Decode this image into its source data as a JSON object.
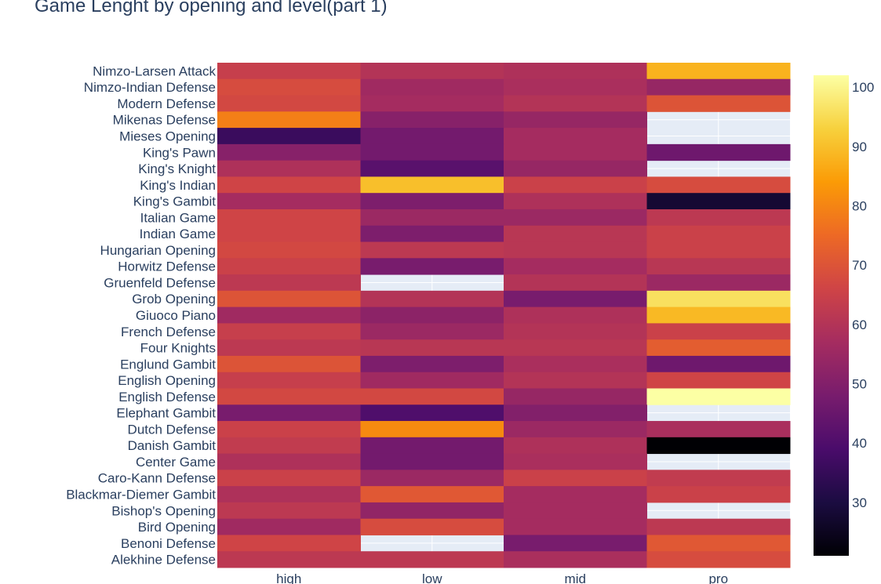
{
  "chart_data": {
    "type": "heatmap",
    "title": "Game Lenght by opening and level(part 1)",
    "xlabel": "",
    "ylabel": "",
    "x": [
      "high",
      "low",
      "mid",
      "pro"
    ],
    "y": [
      "Nimzo-Larsen Attack",
      "Nimzo-Indian Defense",
      "Modern Defense",
      "Mikenas Defense",
      "Mieses Opening",
      "King's Pawn",
      "King's Knight",
      "King's Indian",
      "King's Gambit",
      "Italian Game",
      "Indian Game",
      "Hungarian Opening",
      "Horwitz Defense",
      "Gruenfeld Defense",
      "Grob Opening",
      "Giuoco Piano",
      "French Defense",
      "Four Knights",
      "Englund Gambit",
      "English Opening",
      "English Defense",
      "Elephant Gambit",
      "Dutch Defense",
      "Danish Gambit",
      "Center Game",
      "Caro-Kann Defense",
      "Blackmar-Diemer Gambit",
      "Bishop's Opening",
      "Bird Opening",
      "Benoni Defense",
      "Alekhine Defense"
    ],
    "z": [
      [
        64,
        60,
        59,
        88
      ],
      [
        68,
        56,
        58,
        54
      ],
      [
        67,
        57,
        60,
        70
      ],
      [
        79,
        51,
        54,
        null
      ],
      [
        36,
        47,
        57,
        null
      ],
      [
        51,
        47,
        57,
        46
      ],
      [
        59,
        42,
        54,
        null
      ],
      [
        66,
        90,
        65,
        68
      ],
      [
        57,
        49,
        59,
        28
      ],
      [
        66,
        55,
        55,
        62
      ],
      [
        66,
        49,
        61,
        65
      ],
      [
        67,
        62,
        61,
        65
      ],
      [
        65,
        48,
        57,
        61
      ],
      [
        62,
        null,
        60,
        55
      ],
      [
        70,
        60,
        48,
        96
      ],
      [
        56,
        52,
        59,
        89
      ],
      [
        64,
        55,
        60,
        65
      ],
      [
        62,
        61,
        61,
        72
      ],
      [
        70,
        49,
        58,
        46
      ],
      [
        64,
        56,
        60,
        66
      ],
      [
        67,
        67,
        54,
        102
      ],
      [
        48,
        40,
        50,
        null
      ],
      [
        65,
        81,
        55,
        58
      ],
      [
        63,
        47,
        59,
        21
      ],
      [
        59,
        47,
        58,
        null
      ],
      [
        65,
        55,
        65,
        63
      ],
      [
        59,
        71,
        57,
        65
      ],
      [
        62,
        53,
        57,
        null
      ],
      [
        56,
        68,
        57,
        62
      ],
      [
        66,
        null,
        48,
        71
      ],
      [
        62,
        62,
        58,
        68
      ]
    ],
    "zmin": 21,
    "zmax": 102,
    "colorscale": "Inferno",
    "colorbar_ticks": [
      30,
      40,
      50,
      60,
      70,
      80,
      90,
      100
    ],
    "missing_color": "#e5ecf6",
    "grid": true
  }
}
